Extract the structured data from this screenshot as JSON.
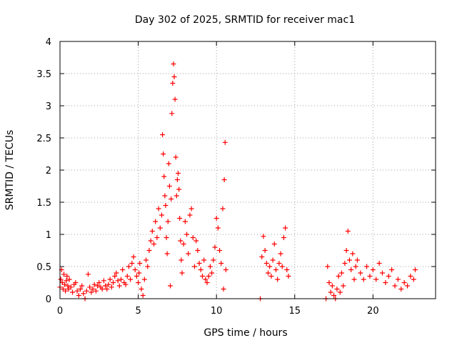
{
  "chart_data": {
    "type": "scatter",
    "title": "Day 302 of 2025, SRMTID for receiver mac1",
    "xlabel": "GPS time / hours",
    "ylabel": "SRMTID / TECUs",
    "xlim": [
      0,
      24
    ],
    "ylim": [
      0,
      4
    ],
    "xticks": [
      0,
      5,
      10,
      15,
      20
    ],
    "xtick_labels": [
      "0",
      "5",
      "10",
      "15",
      "20"
    ],
    "yticks": [
      0,
      0.5,
      1,
      1.5,
      2,
      2.5,
      3,
      3.5,
      4
    ],
    "ytick_labels": [
      "0",
      "0.5",
      "1",
      "1.5",
      "2",
      "2.5",
      "3",
      "3.5",
      "4"
    ],
    "grid": true,
    "marker": "+",
    "series": [
      {
        "name": "SRMTID",
        "color": "#ff0000",
        "points": [
          [
            0.0,
            0.18
          ],
          [
            0.05,
            0.3
          ],
          [
            0.1,
            0.45
          ],
          [
            0.15,
            0.25
          ],
          [
            0.2,
            0.15
          ],
          [
            0.25,
            0.38
          ],
          [
            0.3,
            0.22
          ],
          [
            0.35,
            0.12
          ],
          [
            0.4,
            0.28
          ],
          [
            0.45,
            0.35
          ],
          [
            0.5,
            0.2
          ],
          [
            0.55,
            0.15
          ],
          [
            0.6,
            0.3
          ],
          [
            0.7,
            0.18
          ],
          [
            0.8,
            0.1
          ],
          [
            0.9,
            0.22
          ],
          [
            1.0,
            0.25
          ],
          [
            1.1,
            0.12
          ],
          [
            1.2,
            0.05
          ],
          [
            1.3,
            0.15
          ],
          [
            1.4,
            0.2
          ],
          [
            1.5,
            0.08
          ],
          [
            1.6,
            0.0
          ],
          [
            1.7,
            0.12
          ],
          [
            1.8,
            0.38
          ],
          [
            1.9,
            0.18
          ],
          [
            2.0,
            0.1
          ],
          [
            2.1,
            0.15
          ],
          [
            2.2,
            0.22
          ],
          [
            2.3,
            0.12
          ],
          [
            2.4,
            0.2
          ],
          [
            2.5,
            0.25
          ],
          [
            2.6,
            0.18
          ],
          [
            2.7,
            0.15
          ],
          [
            2.8,
            0.28
          ],
          [
            2.9,
            0.2
          ],
          [
            3.0,
            0.15
          ],
          [
            3.1,
            0.22
          ],
          [
            3.2,
            0.3
          ],
          [
            3.3,
            0.18
          ],
          [
            3.4,
            0.25
          ],
          [
            3.5,
            0.35
          ],
          [
            3.6,
            0.4
          ],
          [
            3.7,
            0.28
          ],
          [
            3.8,
            0.2
          ],
          [
            3.9,
            0.3
          ],
          [
            4.0,
            0.45
          ],
          [
            4.1,
            0.25
          ],
          [
            4.2,
            0.22
          ],
          [
            4.3,
            0.35
          ],
          [
            4.4,
            0.5
          ],
          [
            4.5,
            0.3
          ],
          [
            4.6,
            0.55
          ],
          [
            4.7,
            0.65
          ],
          [
            4.8,
            0.45
          ],
          [
            4.9,
            0.35
          ],
          [
            5.0,
            0.25
          ],
          [
            5.05,
            0.4
          ],
          [
            5.1,
            0.55
          ],
          [
            5.2,
            0.15
          ],
          [
            5.3,
            0.05
          ],
          [
            5.4,
            0.3
          ],
          [
            5.5,
            0.6
          ],
          [
            5.6,
            0.5
          ],
          [
            5.7,
            0.75
          ],
          [
            5.8,
            0.9
          ],
          [
            5.9,
            1.05
          ],
          [
            6.0,
            0.85
          ],
          [
            6.1,
            1.2
          ],
          [
            6.2,
            0.95
          ],
          [
            6.3,
            1.4
          ],
          [
            6.4,
            1.1
          ],
          [
            6.5,
            1.3
          ],
          [
            6.55,
            2.55
          ],
          [
            6.6,
            2.25
          ],
          [
            6.65,
            1.9
          ],
          [
            6.7,
            1.6
          ],
          [
            6.75,
            1.45
          ],
          [
            6.8,
            0.95
          ],
          [
            6.85,
            0.7
          ],
          [
            6.9,
            1.2
          ],
          [
            6.95,
            2.1
          ],
          [
            7.0,
            1.75
          ],
          [
            7.05,
            0.2
          ],
          [
            7.1,
            1.55
          ],
          [
            7.15,
            2.88
          ],
          [
            7.2,
            3.35
          ],
          [
            7.25,
            3.65
          ],
          [
            7.3,
            3.45
          ],
          [
            7.35,
            3.1
          ],
          [
            7.4,
            2.2
          ],
          [
            7.45,
            1.6
          ],
          [
            7.5,
            1.85
          ],
          [
            7.55,
            1.95
          ],
          [
            7.6,
            1.7
          ],
          [
            7.65,
            1.25
          ],
          [
            7.7,
            0.9
          ],
          [
            7.75,
            0.6
          ],
          [
            7.8,
            0.4
          ],
          [
            7.9,
            0.85
          ],
          [
            8.0,
            1.2
          ],
          [
            8.1,
            1.0
          ],
          [
            8.2,
            0.7
          ],
          [
            8.3,
            1.3
          ],
          [
            8.4,
            1.4
          ],
          [
            8.5,
            0.95
          ],
          [
            8.6,
            0.5
          ],
          [
            8.7,
            0.9
          ],
          [
            8.8,
            0.75
          ],
          [
            8.9,
            0.55
          ],
          [
            9.0,
            0.45
          ],
          [
            9.1,
            0.35
          ],
          [
            9.2,
            0.6
          ],
          [
            9.3,
            0.3
          ],
          [
            9.4,
            0.25
          ],
          [
            9.5,
            0.35
          ],
          [
            9.6,
            0.5
          ],
          [
            9.7,
            0.4
          ],
          [
            9.8,
            0.6
          ],
          [
            9.9,
            0.8
          ],
          [
            10.0,
            1.25
          ],
          [
            10.1,
            1.1
          ],
          [
            10.2,
            0.75
          ],
          [
            10.3,
            0.55
          ],
          [
            10.4,
            1.4
          ],
          [
            10.45,
            0.15
          ],
          [
            10.5,
            1.85
          ],
          [
            10.55,
            2.43
          ],
          [
            10.6,
            0.45
          ],
          [
            12.8,
            0.0
          ],
          [
            12.9,
            0.65
          ],
          [
            13.0,
            0.97
          ],
          [
            13.1,
            0.75
          ],
          [
            13.2,
            0.55
          ],
          [
            13.3,
            0.4
          ],
          [
            13.4,
            0.5
          ],
          [
            13.5,
            0.35
          ],
          [
            13.6,
            0.6
          ],
          [
            13.7,
            0.85
          ],
          [
            13.8,
            0.45
          ],
          [
            13.9,
            0.3
          ],
          [
            14.0,
            0.55
          ],
          [
            14.1,
            0.7
          ],
          [
            14.2,
            0.5
          ],
          [
            14.3,
            0.95
          ],
          [
            14.4,
            1.1
          ],
          [
            14.5,
            0.45
          ],
          [
            14.6,
            0.35
          ],
          [
            17.0,
            0.0
          ],
          [
            17.1,
            0.5
          ],
          [
            17.2,
            0.25
          ],
          [
            17.3,
            0.1
          ],
          [
            17.4,
            0.2
          ],
          [
            17.5,
            0.05
          ],
          [
            17.6,
            0.0
          ],
          [
            17.7,
            0.15
          ],
          [
            17.8,
            0.35
          ],
          [
            17.9,
            0.1
          ],
          [
            18.0,
            0.4
          ],
          [
            18.1,
            0.2
          ],
          [
            18.2,
            0.55
          ],
          [
            18.3,
            0.75
          ],
          [
            18.4,
            1.05
          ],
          [
            18.5,
            0.6
          ],
          [
            18.6,
            0.45
          ],
          [
            18.7,
            0.7
          ],
          [
            18.8,
            0.3
          ],
          [
            18.9,
            0.5
          ],
          [
            19.0,
            0.6
          ],
          [
            19.2,
            0.4
          ],
          [
            19.4,
            0.3
          ],
          [
            19.6,
            0.5
          ],
          [
            19.8,
            0.35
          ],
          [
            20.0,
            0.45
          ],
          [
            20.2,
            0.3
          ],
          [
            20.4,
            0.55
          ],
          [
            20.6,
            0.4
          ],
          [
            20.8,
            0.25
          ],
          [
            21.0,
            0.35
          ],
          [
            21.2,
            0.45
          ],
          [
            21.4,
            0.2
          ],
          [
            21.6,
            0.3
          ],
          [
            21.8,
            0.15
          ],
          [
            22.0,
            0.25
          ],
          [
            22.2,
            0.2
          ],
          [
            22.4,
            0.35
          ],
          [
            22.6,
            0.3
          ],
          [
            22.7,
            0.45
          ]
        ]
      }
    ]
  }
}
